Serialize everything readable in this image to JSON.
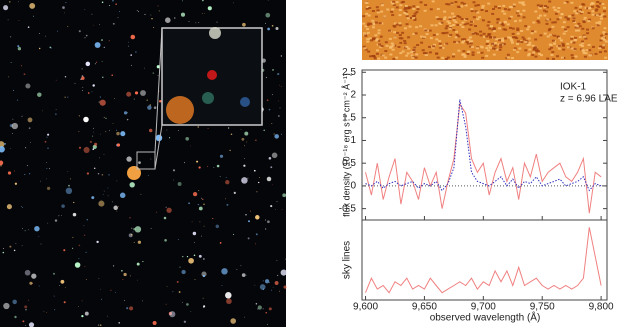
{
  "chart_data": [
    {
      "type": "line",
      "annotations": [
        "IOK-1",
        "z = 6.96 LAE"
      ],
      "ylabel": "flux density (10⁻¹⁸ erg s⁻¹ cm⁻² Å⁻¹)",
      "x": [
        9600,
        9605,
        9610,
        9615,
        9620,
        9625,
        9630,
        9635,
        9640,
        9645,
        9650,
        9655,
        9660,
        9665,
        9670,
        9675,
        9680,
        9685,
        9690,
        9695,
        9700,
        9705,
        9710,
        9715,
        9720,
        9725,
        9730,
        9735,
        9740,
        9745,
        9750,
        9755,
        9760,
        9765,
        9770,
        9775,
        9780,
        9785,
        9790,
        9795,
        9800
      ],
      "series": [
        {
          "color": "#f08080",
          "values": [
            0.3,
            -0.2,
            0.5,
            -0.3,
            0.2,
            0.6,
            -0.4,
            0.3,
            0.1,
            -0.3,
            0.4,
            0.0,
            0.3,
            -0.5,
            0.1,
            0.6,
            1.8,
            1.6,
            0.6,
            0.3,
            0.5,
            -0.2,
            0.3,
            0.6,
            0.1,
            0.4,
            -0.3,
            0.5,
            0.2,
            0.7,
            0.1,
            0.3,
            0.4,
            0.5,
            0.2,
            0.1,
            0.3,
            0.6,
            -0.6,
            0.3,
            0.2
          ]
        },
        {
          "color": "#3030c0",
          "values": [
            0.05,
            0.0,
            0.1,
            -0.05,
            0.05,
            0.1,
            0.0,
            0.05,
            0.1,
            -0.05,
            0.05,
            0.0,
            0.1,
            -0.1,
            0.05,
            0.4,
            1.9,
            1.3,
            0.3,
            0.1,
            0.05,
            0.0,
            0.1,
            0.2,
            0.0,
            0.15,
            -0.05,
            0.1,
            0.05,
            0.2,
            0.0,
            0.05,
            0.1,
            0.15,
            0.0,
            0.05,
            0.1,
            0.2,
            -0.1,
            0.05,
            0.0
          ]
        }
      ],
      "xlim": [
        9597,
        9805
      ],
      "ylim": [
        -0.75,
        2.55
      ],
      "yticks": [
        2.5,
        2,
        1.5,
        1,
        0.5,
        0,
        -0.5
      ]
    },
    {
      "type": "line",
      "ylabel": "sky lines",
      "xlabel": "observed wavelength (Å)",
      "x": [
        9600,
        9605,
        9610,
        9615,
        9620,
        9625,
        9630,
        9635,
        9640,
        9645,
        9650,
        9655,
        9660,
        9665,
        9670,
        9675,
        9680,
        9685,
        9690,
        9695,
        9700,
        9705,
        9710,
        9715,
        9720,
        9725,
        9730,
        9735,
        9740,
        9745,
        9750,
        9755,
        9760,
        9765,
        9770,
        9775,
        9780,
        9785,
        9790,
        9795,
        9800
      ],
      "series": [
        {
          "color": "#f08080",
          "values": [
            0.1,
            0.3,
            0.15,
            0.2,
            0.1,
            0.25,
            0.2,
            0.3,
            0.15,
            0.2,
            0.15,
            0.3,
            0.2,
            0.1,
            0.15,
            0.2,
            0.25,
            0.2,
            0.3,
            0.15,
            0.25,
            0.2,
            0.4,
            0.25,
            0.4,
            0.2,
            0.45,
            0.2,
            0.25,
            0.3,
            0.2,
            0.15,
            0.2,
            0.15,
            0.2,
            0.15,
            0.2,
            0.3,
            1.0,
            0.6,
            0.2
          ]
        }
      ],
      "xlim": [
        9597,
        9805
      ],
      "ylim": [
        0,
        1.1
      ],
      "xticks": [
        {
          "value": 9600,
          "label": "9,600"
        },
        {
          "value": 9650,
          "label": "9,650"
        },
        {
          "value": 9700,
          "label": "9,700"
        },
        {
          "value": 9750,
          "label": "9,750"
        },
        {
          "value": 9800,
          "label": "9,800"
        }
      ]
    }
  ]
}
